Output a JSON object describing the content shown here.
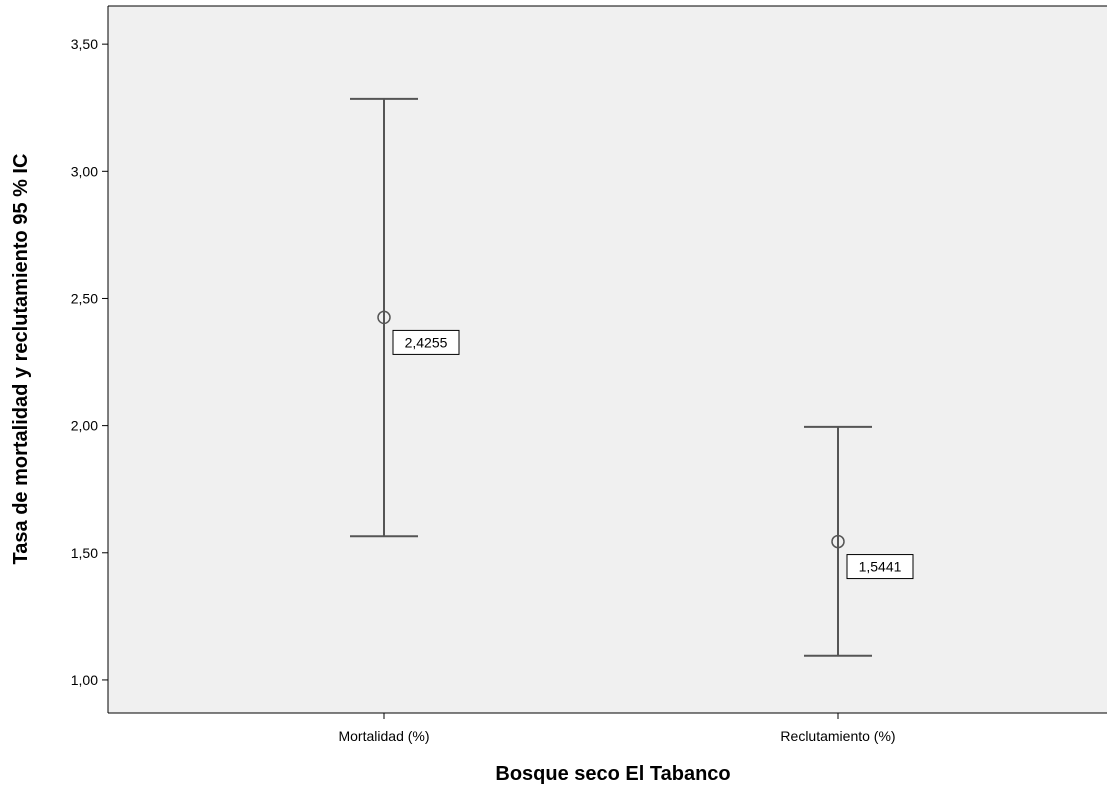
{
  "chart_data": {
    "type": "errorbar",
    "title": "",
    "xlabel": "Bosque seco El Tabanco",
    "ylabel": "Tasa de mortalidad y reclutamiento 95 % IC",
    "categories": [
      "Mortalidad (%)",
      "Reclutamiento (%)"
    ],
    "series": [
      {
        "values": [
          2.4255,
          1.5441
        ],
        "lower": [
          1.565,
          1.095
        ],
        "upper": [
          3.285,
          1.995
        ],
        "value_labels": [
          "2,4255",
          "1,5441"
        ]
      }
    ],
    "ylim": [
      0.87,
      3.65
    ],
    "yticks": [
      1.0,
      1.5,
      2.0,
      2.5,
      3.0,
      3.5
    ],
    "ytick_labels": [
      "1,00",
      "1,50",
      "2,00",
      "2,50",
      "3,00",
      "3,50"
    ],
    "grid": false,
    "colors": {
      "plot_background": "#f0f0f0",
      "bar": "#555555",
      "axis": "#000000"
    }
  }
}
